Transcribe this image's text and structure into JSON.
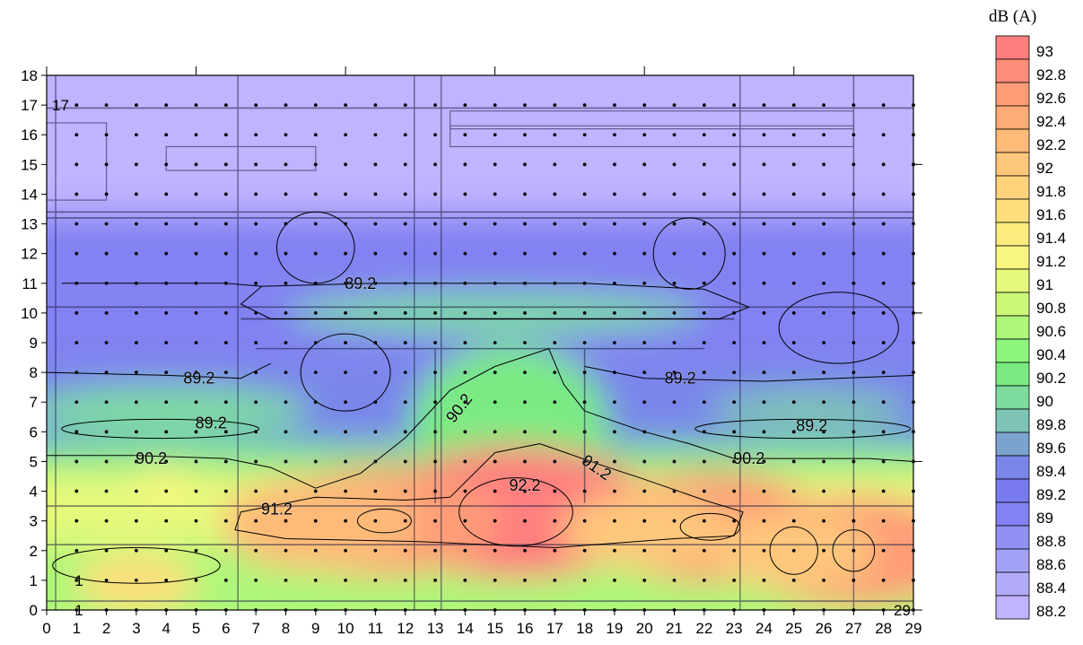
{
  "chart_data": {
    "type": "heatmap",
    "title": "",
    "xlabel": "",
    "ylabel": "",
    "xlim": [
      0,
      29
    ],
    "ylim": [
      0,
      18
    ],
    "x_ticks": [
      "0",
      "1",
      "2",
      "3",
      "4",
      "5",
      "6",
      "7",
      "8",
      "9",
      "10",
      "11",
      "12",
      "13",
      "14",
      "15",
      "16",
      "17",
      "18",
      "19",
      "20",
      "21",
      "22",
      "23",
      "24",
      "25",
      "26",
      "27",
      "28",
      "29"
    ],
    "y_ticks": [
      "0",
      "1",
      "2",
      "3",
      "4",
      "5",
      "6",
      "7",
      "8",
      "9",
      "10",
      "11",
      "12",
      "13",
      "14",
      "15",
      "16",
      "17",
      "18"
    ],
    "grid_points": {
      "x_from": 1,
      "x_to": 29,
      "y_from": 0,
      "y_to": 17,
      "step": 1
    },
    "point_labels": [
      {
        "text": "1",
        "x": 1,
        "y": 1
      },
      {
        "text": "1",
        "x": 1,
        "y": 0
      },
      {
        "text": "17",
        "x": 0,
        "y": 17
      },
      {
        "text": "29",
        "x": 29,
        "y": 0
      }
    ],
    "contour_labels": [
      {
        "text": "89.2",
        "x": 10.5,
        "y": 11
      },
      {
        "text": "89.2",
        "x": 5.1,
        "y": 7.8
      },
      {
        "text": "89.2",
        "x": 5.5,
        "y": 6.3
      },
      {
        "text": "89.2",
        "x": 21.2,
        "y": 7.8
      },
      {
        "text": "89.2",
        "x": 25.6,
        "y": 6.2
      },
      {
        "text": "90.2",
        "x": 13.8,
        "y": 6.8,
        "rotate": -52
      },
      {
        "text": "90.2",
        "x": 3.5,
        "y": 5.1
      },
      {
        "text": "90.2",
        "x": 23.5,
        "y": 5.1
      },
      {
        "text": "91.2",
        "x": 7.7,
        "y": 3.4
      },
      {
        "text": "91.2",
        "x": 18.4,
        "y": 4.8,
        "rotate": 35
      },
      {
        "text": "92.2",
        "x": 16,
        "y": 4.2
      }
    ],
    "hotspots": [
      {
        "x": 15.7,
        "y": 3.3,
        "value": 93.0
      },
      {
        "x": 11.2,
        "y": 3.0,
        "value": 92.6
      },
      {
        "x": 9.2,
        "y": 2.9,
        "value": 92.3
      },
      {
        "x": 22.2,
        "y": 2.8,
        "value": 92.6
      },
      {
        "x": 20.0,
        "y": 2.7,
        "value": 92.0
      },
      {
        "x": 27.0,
        "y": 2.0,
        "value": 92.6
      },
      {
        "x": 25.0,
        "y": 2.0,
        "value": 92.0
      },
      {
        "x": 3.0,
        "y": 0.9,
        "value": 91.6
      },
      {
        "x": 4.0,
        "y": 4.3,
        "value": 91.2
      }
    ],
    "colorbar": {
      "title": "dB (A)",
      "levels": [
        "93",
        "92.8",
        "92.6",
        "92.4",
        "92.2",
        "92",
        "91.8",
        "91.6",
        "91.4",
        "91.2",
        "91",
        "90.8",
        "90.6",
        "90.4",
        "90.2",
        "90",
        "89.8",
        "89.6",
        "89.4",
        "89.2",
        "89",
        "88.8",
        "88.6",
        "88.4",
        "88.2"
      ],
      "colors": [
        "#ff7f7f",
        "#ff8c7a",
        "#ff9c78",
        "#ffab78",
        "#ffba79",
        "#ffc77b",
        "#ffd37c",
        "#ffdf7d",
        "#fcec7e",
        "#f7f77f",
        "#e6f97b",
        "#ccf87a",
        "#aef77a",
        "#8ef57c",
        "#7aeb82",
        "#7ddb9e",
        "#7dc4b4",
        "#7aa3cf",
        "#7a86ea",
        "#7a7af0",
        "#8282f2",
        "#9191f4",
        "#a3a1f7",
        "#b3acfa",
        "#c0b3ff"
      ]
    }
  }
}
